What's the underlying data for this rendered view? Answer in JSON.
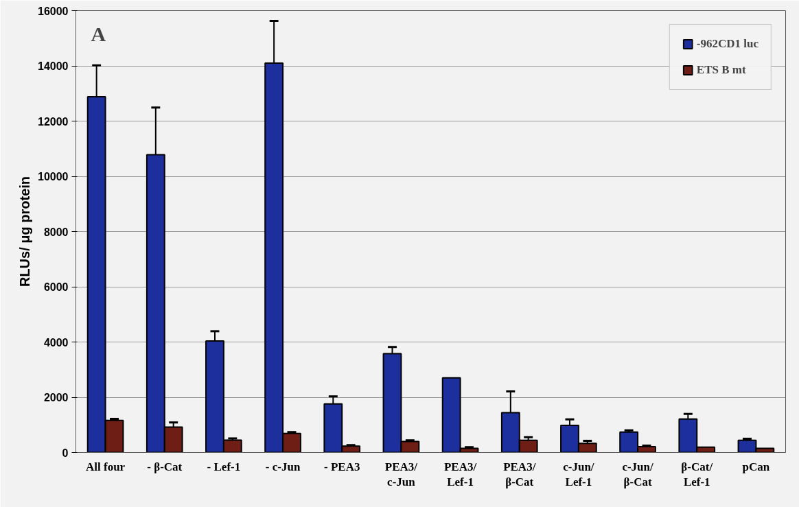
{
  "chart_data": {
    "type": "bar",
    "ylabel": "RLUs/ μg protein",
    "categories": [
      "All four",
      "- β-Cat",
      "- Lef-1",
      "- c-Jun",
      "- PEA3",
      "PEA3/\nc-Jun",
      "PEA3/\nLef-1",
      "PEA3/\nβ-Cat",
      "c-Jun/\nLef-1",
      "c-Jun/\nβ-Cat",
      "β-Cat/\nLef-1",
      "pCan"
    ],
    "series": [
      {
        "name": "-962CD1 luc",
        "color": "#1c2f9c",
        "values": [
          12880,
          10780,
          4040,
          14100,
          1760,
          3580,
          2700,
          1440,
          980,
          740,
          1210,
          440
        ],
        "errors": [
          [
            12880,
            14020
          ],
          [
            10780,
            12490
          ],
          [
            4040,
            4390
          ],
          [
            14100,
            15630
          ],
          [
            1760,
            2030
          ],
          [
            3580,
            3820
          ],
          null,
          [
            1440,
            2210
          ],
          [
            980,
            1200
          ],
          [
            740,
            800
          ],
          [
            1210,
            1400
          ],
          [
            440,
            500
          ]
        ]
      },
      {
        "name": "ETS B mt",
        "color": "#6e1e14",
        "values": [
          1160,
          920,
          450,
          690,
          230,
          400,
          150,
          440,
          330,
          210,
          190,
          150
        ],
        "errors": [
          [
            1160,
            1220
          ],
          [
            920,
            1090
          ],
          [
            450,
            510
          ],
          [
            690,
            740
          ],
          [
            230,
            270
          ],
          [
            400,
            440
          ],
          [
            150,
            190
          ],
          [
            440,
            555
          ],
          [
            330,
            420
          ],
          [
            210,
            250
          ],
          null,
          null
        ]
      }
    ],
    "ylim": [
      0,
      16000
    ],
    "yticks": [
      0,
      2000,
      4000,
      6000,
      8000,
      10000,
      12000,
      14000,
      16000
    ],
    "grid": "y",
    "legend": "top right",
    "annotations": [
      "A"
    ]
  }
}
